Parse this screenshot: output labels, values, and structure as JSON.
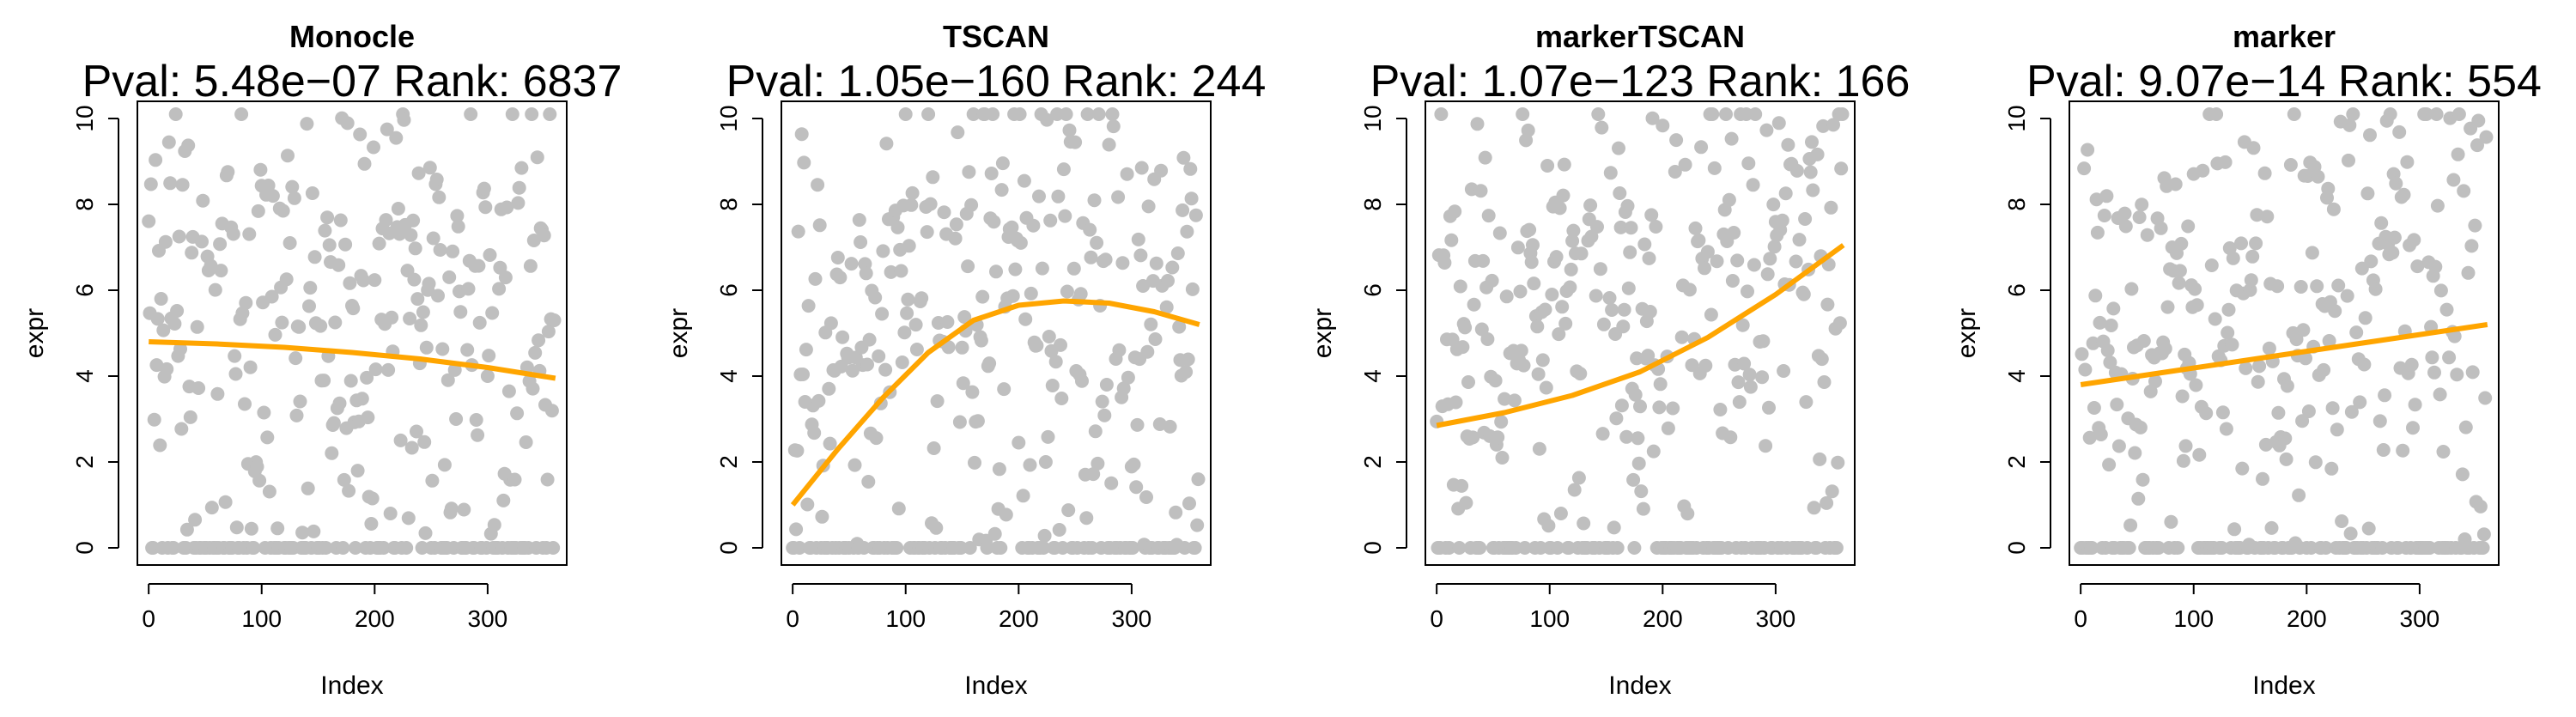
{
  "figure": {
    "point_color": "#bfbfbf",
    "line_color": "#ffa500",
    "axis_color": "#000000"
  },
  "chart_data": [
    {
      "type": "scatter",
      "title": "Monocle",
      "subtitle": "Pval: 5.48e−07 Rank: 6837",
      "xlabel": "Index",
      "ylabel": "expr",
      "xlim": [
        -10,
        370
      ],
      "ylim": [
        -0.4,
        10.4
      ],
      "xticks": [
        0,
        100,
        200,
        300
      ],
      "yticks": [
        0,
        2,
        4,
        6,
        8,
        10
      ],
      "grid": false,
      "legend": "none",
      "trend_line": {
        "x": [
          0,
          60,
          120,
          180,
          240,
          300,
          360
        ],
        "y": [
          4.8,
          4.75,
          4.67,
          4.55,
          4.4,
          4.2,
          3.95
        ]
      },
      "points_seed": 11,
      "n_points": 360,
      "zero_fraction": 0.26,
      "hi_center": 6.5
    },
    {
      "type": "scatter",
      "title": "TSCAN",
      "subtitle": "Pval: 1.05e−160 Rank: 244",
      "xlabel": "Index",
      "ylabel": "expr",
      "xlim": [
        -10,
        370
      ],
      "ylim": [
        -0.4,
        10.4
      ],
      "xticks": [
        0,
        100,
        200,
        300
      ],
      "yticks": [
        0,
        2,
        4,
        6,
        8,
        10
      ],
      "grid": false,
      "legend": "none",
      "trend_line": {
        "x": [
          0,
          40,
          80,
          120,
          160,
          200,
          240,
          280,
          320,
          360
        ],
        "y": [
          1.0,
          2.3,
          3.5,
          4.55,
          5.3,
          5.65,
          5.75,
          5.7,
          5.5,
          5.2
        ]
      },
      "points_seed": 23,
      "n_points": 360,
      "zero_fraction": 0.3,
      "hi_center": 7.0
    },
    {
      "type": "scatter",
      "title": "markerTSCAN",
      "subtitle": "Pval: 1.07e−123 Rank: 166",
      "xlabel": "Index",
      "ylabel": "expr",
      "xlim": [
        -10,
        370
      ],
      "ylim": [
        -0.4,
        10.4
      ],
      "xticks": [
        0,
        100,
        200,
        300
      ],
      "yticks": [
        0,
        2,
        4,
        6,
        8,
        10
      ],
      "grid": false,
      "legend": "none",
      "trend_line": {
        "x": [
          0,
          60,
          120,
          180,
          240,
          300,
          360
        ],
        "y": [
          2.85,
          3.15,
          3.55,
          4.1,
          4.9,
          5.9,
          7.05
        ]
      },
      "points_seed": 37,
      "n_points": 360,
      "zero_fraction": 0.3,
      "hi_center": 6.8
    },
    {
      "type": "scatter",
      "title": "marker",
      "subtitle": "Pval: 9.07e−14 Rank: 554",
      "xlabel": "Index",
      "ylabel": "expr",
      "xlim": [
        -10,
        370
      ],
      "ylim": [
        -0.4,
        10.4
      ],
      "xticks": [
        0,
        100,
        200,
        300
      ],
      "yticks": [
        0,
        2,
        4,
        6,
        8,
        10
      ],
      "grid": false,
      "legend": "none",
      "trend_line": {
        "x": [
          0,
          360
        ],
        "y": [
          3.8,
          5.2
        ]
      },
      "points_seed": 53,
      "n_points": 360,
      "zero_fraction": 0.3,
      "hi_center": 6.5
    }
  ]
}
